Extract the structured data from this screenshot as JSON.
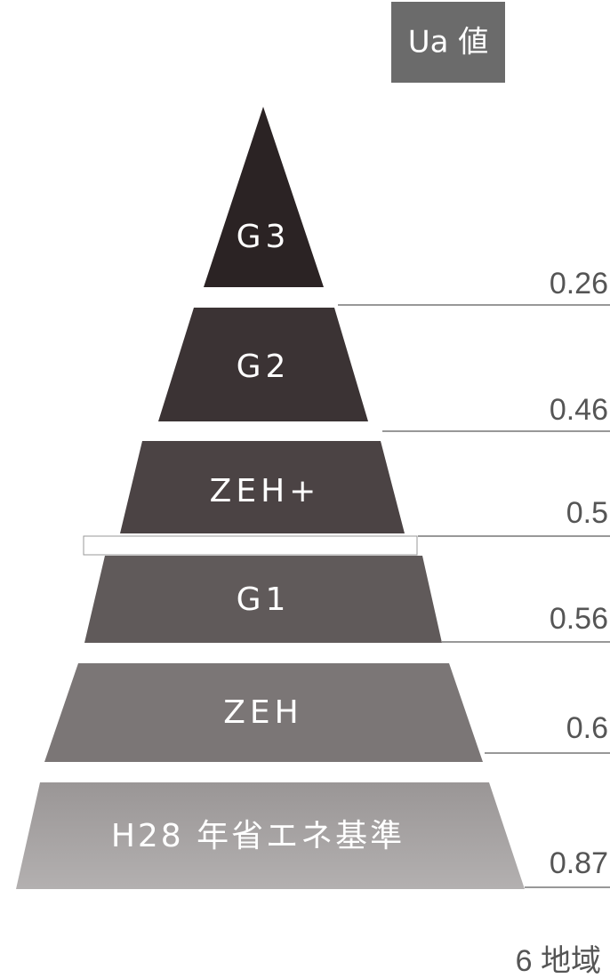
{
  "header": {
    "label": "Ua 値"
  },
  "levels": [
    {
      "name": "G3",
      "value": 0.26
    },
    {
      "name": "G2",
      "value": 0.46
    },
    {
      "name": "ZEH+",
      "value": 0.5
    },
    {
      "name": "G1",
      "value": 0.56
    },
    {
      "name": "ZEH",
      "value": 0.6
    },
    {
      "name": "H28 年省エネ基準",
      "value": 0.87
    }
  ],
  "footer": {
    "region": "6 地域"
  }
}
